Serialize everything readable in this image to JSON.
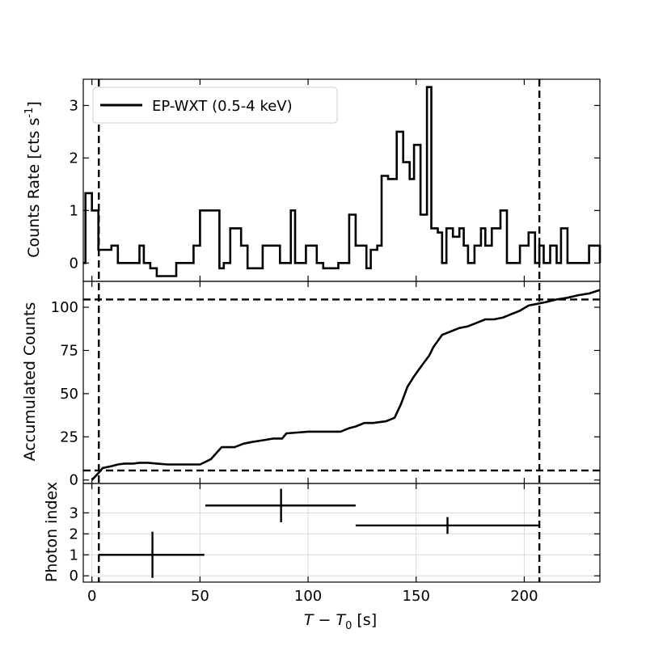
{
  "chart_data": [
    {
      "type": "line",
      "panel": "light-curve",
      "ylabel": "Counts Rate [cts s",
      "ylabel_exp": "-1",
      "ylabel_close": "]",
      "xlim": [
        -4,
        235
      ],
      "ylim": [
        -0.35,
        3.5
      ],
      "yticks": [
        0,
        1,
        2,
        3
      ],
      "ytick_labels": [
        "0",
        "1",
        "2",
        "3"
      ],
      "legend": {
        "label": "EP-WXT (0.5-4 keV)",
        "loc": "upper-left"
      },
      "step_edges": [
        -4,
        -3,
        0,
        3,
        9,
        12,
        19,
        22,
        24,
        27,
        30,
        39,
        47,
        50,
        54,
        56,
        59,
        61,
        64,
        69,
        72,
        79,
        82,
        84,
        87,
        89,
        92,
        94,
        99,
        104,
        107,
        110,
        114,
        119,
        122,
        124,
        127,
        129,
        132,
        134,
        137,
        141,
        144,
        147,
        149,
        152,
        155,
        157,
        160,
        162,
        164,
        167,
        170,
        172,
        174,
        177,
        180,
        182,
        185,
        189,
        192,
        195,
        198,
        202,
        205,
        207,
        209,
        212,
        215,
        217,
        220,
        224,
        230,
        235
      ],
      "step_values": [
        0,
        1.33,
        1,
        0.25,
        0.33,
        0,
        0,
        0.33,
        0,
        -0.1,
        -0.25,
        0,
        0.33,
        1,
        1,
        1,
        -0.1,
        0,
        0.66,
        0.33,
        -0.1,
        0.33,
        0.33,
        0.33,
        0,
        0,
        1,
        0,
        0.33,
        0,
        -0.1,
        -0.1,
        0,
        0.92,
        0.33,
        0.33,
        -0.1,
        0.25,
        0.33,
        1.66,
        1.6,
        2.5,
        1.92,
        1.6,
        2.25,
        0.92,
        3.35,
        0.66,
        0.58,
        0,
        0.66,
        0.5,
        0.66,
        0.33,
        0,
        0.33,
        0.66,
        0.33,
        0.66,
        1,
        0,
        0,
        0.33,
        0.58,
        0,
        0.33,
        0,
        0.33,
        0,
        0.66,
        0,
        0,
        0.33,
        0
      ]
    },
    {
      "type": "line",
      "panel": "accumulated-counts",
      "ylabel": "Accumulated Counts",
      "xlim": [
        -4,
        235
      ],
      "ylim": [
        -2,
        115
      ],
      "yticks": [
        0,
        25,
        50,
        75,
        100
      ],
      "ytick_labels": [
        "0",
        "25",
        "50",
        "75",
        "100"
      ],
      "x": [
        0,
        3,
        5,
        9,
        12,
        15,
        19,
        22,
        26,
        30,
        35,
        40,
        45,
        50,
        55,
        60,
        66,
        70,
        74,
        79,
        84,
        88,
        90,
        95,
        100,
        105,
        110,
        115,
        119,
        122,
        126,
        130,
        136,
        140,
        143,
        146,
        149,
        153,
        156,
        158,
        162,
        166,
        170,
        174,
        178,
        182,
        186,
        190,
        194,
        198,
        202,
        206,
        210,
        215,
        220,
        225,
        230,
        235
      ],
      "y": [
        0,
        4,
        7,
        8,
        9,
        9.5,
        9.5,
        10,
        10,
        9.5,
        9,
        9,
        9,
        9,
        12,
        19,
        19,
        21,
        22,
        23,
        24,
        24,
        27,
        27.5,
        28,
        28,
        28,
        28,
        30,
        31,
        33,
        33,
        34,
        36,
        44,
        54,
        60,
        67,
        72,
        77,
        84,
        86,
        88,
        89,
        91,
        93,
        93,
        94,
        96,
        98,
        101,
        102,
        103,
        104.5,
        105.5,
        107,
        108,
        110
      ]
    },
    {
      "type": "scatter",
      "panel": "photon-index",
      "ylabel": "Photon index",
      "xlabel_main": "T − T",
      "xlabel_sub": "0",
      "xlabel_unit": " [s]",
      "xlim": [
        -4,
        235
      ],
      "ylim": [
        -0.3,
        4.4
      ],
      "xticks": [
        0,
        50,
        100,
        150,
        200
      ],
      "xtick_labels": [
        "0",
        "50",
        "100",
        "150",
        "200"
      ],
      "yticks": [
        0,
        1,
        2,
        3
      ],
      "ytick_labels": [
        "0",
        "1",
        "2",
        "3"
      ],
      "grid": true,
      "points": [
        {
          "x": 28,
          "xerr": [
            25,
            24
          ],
          "y": 1.0,
          "yerr": [
            1.1,
            1.1
          ]
        },
        {
          "x": 87.5,
          "xerr": [
            35,
            34.5
          ],
          "y": 3.35,
          "yerr": [
            0.8,
            0.8
          ]
        },
        {
          "x": 164.5,
          "xerr": [
            42.5,
            42.5
          ],
          "y": 2.4,
          "yerr": [
            0.4,
            0.4
          ]
        }
      ]
    }
  ],
  "vlines_x": [
    3.2,
    207
  ],
  "hlines_accumulated": [
    104.5,
    5.5
  ]
}
